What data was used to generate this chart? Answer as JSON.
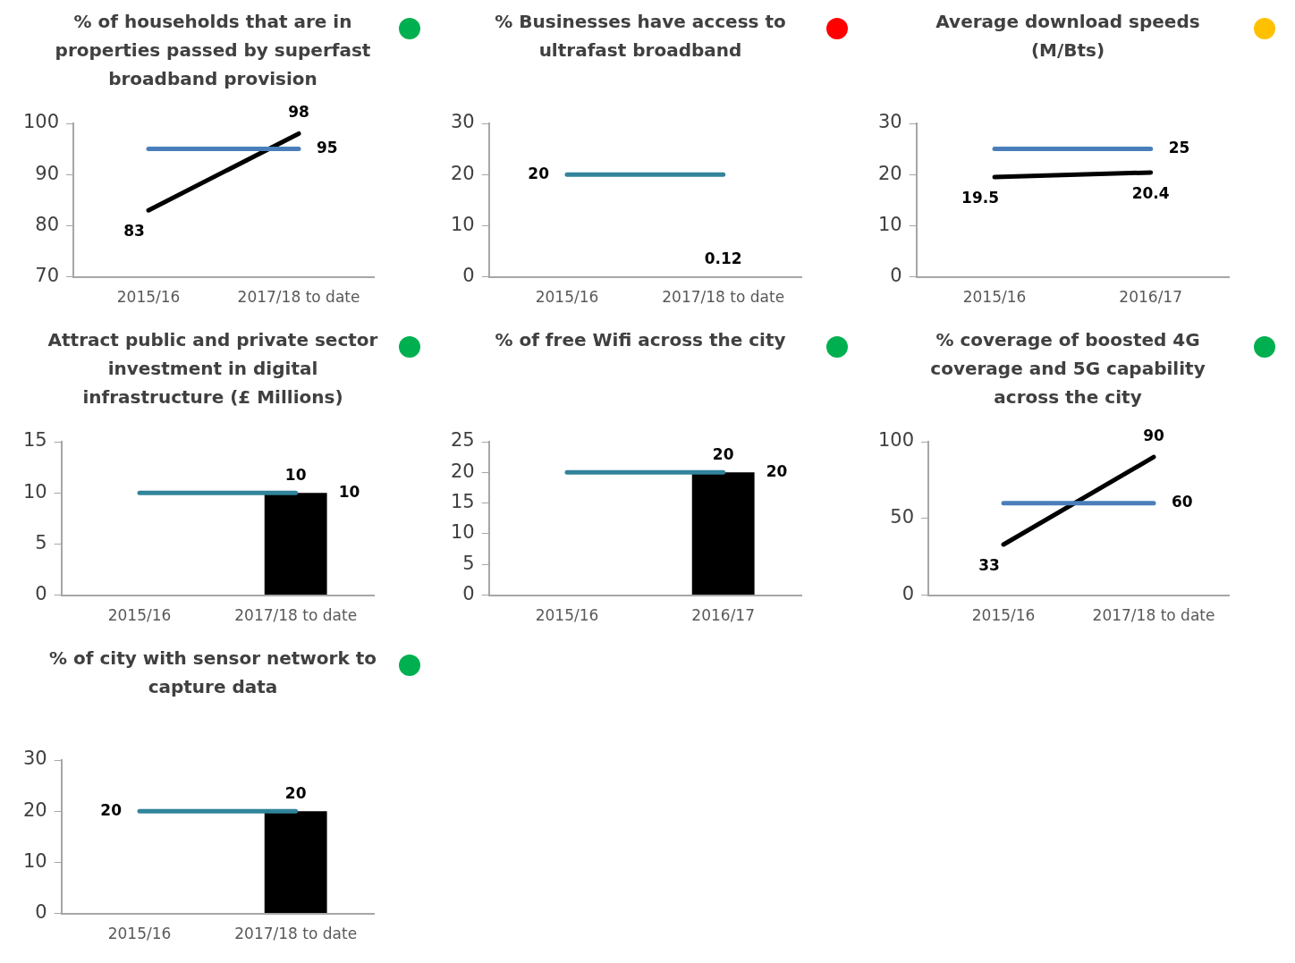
{
  "chart_data": [
    {
      "type": "line",
      "title": "% of households that are in properties passed by superfast broadband provision",
      "categories": [
        "2015/16",
        "2017/18 to date"
      ],
      "ylim": [
        70,
        100
      ],
      "yticks": [
        70,
        80,
        90,
        100
      ],
      "series": [
        {
          "color": "#4a7ebb",
          "values": [
            95,
            95
          ],
          "value_labels": [
            null,
            "95"
          ]
        },
        {
          "color": "#000000",
          "values": [
            83,
            98
          ],
          "value_labels": [
            "83",
            "98"
          ]
        }
      ]
    },
    {
      "type": "line",
      "title": "% Businesses have access to ultrafast broadband",
      "categories": [
        "2015/16",
        "2017/18 to date"
      ],
      "ylim": [
        0,
        30
      ],
      "yticks": [
        0,
        10,
        20,
        30
      ],
      "series": [
        {
          "color": "#31849b",
          "values": [
            20,
            20
          ],
          "value_labels": [
            "20",
            null
          ]
        },
        {
          "type": "bar",
          "color": "#000000",
          "values": [
            null,
            0.12
          ],
          "value_labels": [
            null,
            "0.12"
          ]
        }
      ]
    },
    {
      "type": "line",
      "title": "Average download speeds (M/Bts)",
      "categories": [
        "2015/16",
        "2016/17"
      ],
      "ylim": [
        0,
        30
      ],
      "yticks": [
        0,
        10,
        20,
        30
      ],
      "series": [
        {
          "color": "#4a7ebb",
          "values": [
            25,
            25
          ],
          "value_labels": [
            null,
            "25"
          ]
        },
        {
          "color": "#000000",
          "values": [
            19.5,
            20.4
          ],
          "value_labels": [
            "19.5",
            "20.4"
          ]
        }
      ]
    },
    {
      "type": "line",
      "title": "Attract public and private sector investment in digital infrastructure (£ Millions)",
      "annotations": [
        {
          "text": "10",
          "x": "2017/18 to date",
          "y": 10
        }
      ],
      "categories": [
        "2015/16",
        "2017/18 to date"
      ],
      "ylim": [
        0,
        15
      ],
      "yticks": [
        0,
        5,
        10,
        15
      ],
      "series": [
        {
          "color": "#31849b",
          "values": [
            10,
            10
          ]
        },
        {
          "type": "bar",
          "color": "#000000",
          "values": [
            null,
            10
          ],
          "value_labels": [
            null,
            "10"
          ]
        }
      ]
    },
    {
      "type": "line",
      "title": "% of free Wifi across the city",
      "annotations": [
        {
          "text": "20",
          "x": "2016/17",
          "y": 20
        }
      ],
      "categories": [
        "2015/16",
        "2016/17"
      ],
      "ylim": [
        0,
        25
      ],
      "yticks": [
        0,
        5,
        10,
        15,
        20,
        25
      ],
      "series": [
        {
          "color": "#31849b",
          "values": [
            20,
            20
          ]
        },
        {
          "type": "bar",
          "color": "#000000",
          "values": [
            null,
            20
          ],
          "value_labels": [
            null,
            "20"
          ]
        }
      ]
    },
    {
      "type": "line",
      "title": "% coverage of boosted 4G coverage and 5G capability across the city",
      "categories": [
        "2015/16",
        "2017/18 to date"
      ],
      "ylim": [
        0,
        100
      ],
      "yticks": [
        0,
        50,
        100
      ],
      "series": [
        {
          "color": "#4a7ebb",
          "values": [
            60,
            60
          ],
          "value_labels": [
            null,
            "60"
          ]
        },
        {
          "color": "#000000",
          "values": [
            33,
            90
          ],
          "value_labels": [
            "33",
            "90"
          ]
        }
      ]
    },
    {
      "type": "line",
      "title": "% of city with sensor network to capture data",
      "categories": [
        "2015/16",
        "2017/18 to date"
      ],
      "ylim": [
        0,
        30
      ],
      "yticks": [
        0,
        10,
        20,
        30
      ],
      "series": [
        {
          "color": "#31849b",
          "values": [
            20,
            20
          ],
          "value_labels": [
            "20",
            null
          ]
        },
        {
          "type": "bar",
          "color": "#000000",
          "values": [
            null,
            20
          ],
          "value_labels": [
            null,
            "20"
          ]
        }
      ]
    }
  ]
}
